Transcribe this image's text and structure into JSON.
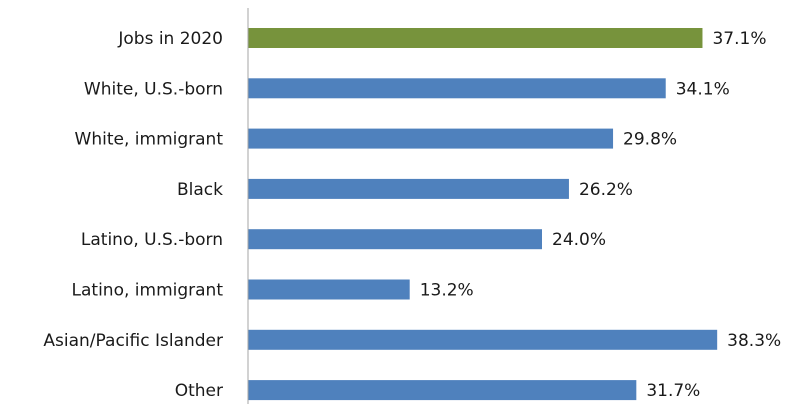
{
  "chart_data": {
    "type": "bar",
    "orientation": "horizontal",
    "categories": [
      "Jobs in 2020",
      "White, U.S.-born",
      "White, immigrant",
      "Black",
      "Latino, U.S.-born",
      "Latino, immigrant",
      "Asian/Pacific Islander",
      "Other"
    ],
    "values": [
      37.1,
      34.1,
      29.8,
      26.2,
      24.0,
      13.2,
      38.3,
      31.7
    ],
    "value_labels": [
      "37.1%",
      "34.1%",
      "29.8%",
      "26.2%",
      "24.0%",
      "13.2%",
      "38.3%",
      "31.7%"
    ],
    "bar_colors": [
      "#77933c",
      "#4f81bd",
      "#4f81bd",
      "#4f81bd",
      "#4f81bd",
      "#4f81bd",
      "#4f81bd",
      "#4f81bd"
    ],
    "xlim": [
      0,
      40
    ],
    "grid": false,
    "legend": "none",
    "title": "",
    "xlabel": "",
    "ylabel": ""
  }
}
